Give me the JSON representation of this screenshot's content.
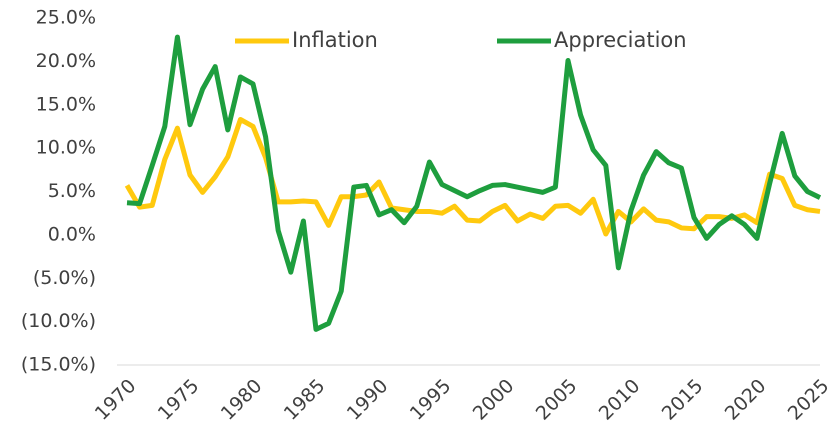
{
  "chart_data": {
    "type": "line",
    "x": [
      1970,
      1971,
      1972,
      1973,
      1974,
      1975,
      1976,
      1977,
      1978,
      1979,
      1980,
      1981,
      1982,
      1983,
      1984,
      1985,
      1986,
      1987,
      1988,
      1989,
      1990,
      1991,
      1992,
      1993,
      1994,
      1995,
      1996,
      1997,
      1998,
      1999,
      2000,
      2001,
      2002,
      2003,
      2004,
      2005,
      2006,
      2007,
      2008,
      2009,
      2010,
      2011,
      2012,
      2013,
      2014,
      2015,
      2016,
      2017,
      2018,
      2019,
      2020,
      2021,
      2022,
      2023,
      2024,
      2025
    ],
    "series": [
      {
        "name": "Inflation",
        "color": "#ffc90e",
        "values": [
          5.7,
          3.2,
          3.4,
          8.7,
          12.3,
          6.9,
          4.9,
          6.7,
          9.0,
          13.3,
          12.5,
          8.9,
          3.8,
          3.8,
          3.9,
          3.8,
          1.1,
          4.4,
          4.4,
          4.6,
          6.1,
          3.1,
          2.9,
          2.7,
          2.7,
          2.5,
          3.3,
          1.7,
          1.6,
          2.7,
          3.4,
          1.6,
          2.4,
          1.9,
          3.3,
          3.4,
          2.5,
          4.1,
          0.1,
          2.7,
          1.5,
          3.0,
          1.7,
          1.5,
          0.8,
          0.7,
          2.1,
          2.1,
          1.9,
          2.3,
          1.4,
          7.0,
          6.5,
          3.4,
          2.9,
          2.7
        ]
      },
      {
        "name": "Appreciation",
        "color": "#1e9e3e",
        "values": [
          3.7,
          3.6,
          8.0,
          12.5,
          22.8,
          12.7,
          16.8,
          19.4,
          12.1,
          18.2,
          17.4,
          11.3,
          0.5,
          -4.3,
          1.6,
          -10.9,
          -10.2,
          -6.5,
          5.5,
          5.7,
          2.3,
          2.9,
          1.4,
          3.3,
          8.4,
          5.8,
          5.1,
          4.4,
          5.1,
          5.7,
          5.8,
          5.5,
          5.2,
          4.9,
          5.5,
          20.1,
          13.8,
          9.8,
          8.0,
          -3.8,
          2.8,
          6.9,
          9.6,
          8.3,
          7.7,
          2.0,
          -0.4,
          1.2,
          2.2,
          1.2,
          -0.4,
          5.9,
          11.7,
          6.8,
          5.0,
          4.3
        ]
      }
    ],
    "xlim": [
      1970,
      2025
    ],
    "xticks": [
      1970,
      1975,
      1980,
      1985,
      1990,
      1995,
      2000,
      2005,
      2010,
      2015,
      2020,
      2025
    ],
    "ylim": [
      -15,
      25
    ],
    "yticks": [
      {
        "value": 25,
        "label": "25.0%"
      },
      {
        "value": 20,
        "label": "20.0%"
      },
      {
        "value": 15,
        "label": "15.0%"
      },
      {
        "value": 10,
        "label": "10.0%"
      },
      {
        "value": 5,
        "label": "5.0%"
      },
      {
        "value": 0,
        "label": "0.0%"
      },
      {
        "value": -5,
        "label": "(5.0%)"
      },
      {
        "value": -10,
        "label": "(10.0%)"
      },
      {
        "value": -15,
        "label": "(15.0%)"
      }
    ],
    "legend": "top"
  }
}
